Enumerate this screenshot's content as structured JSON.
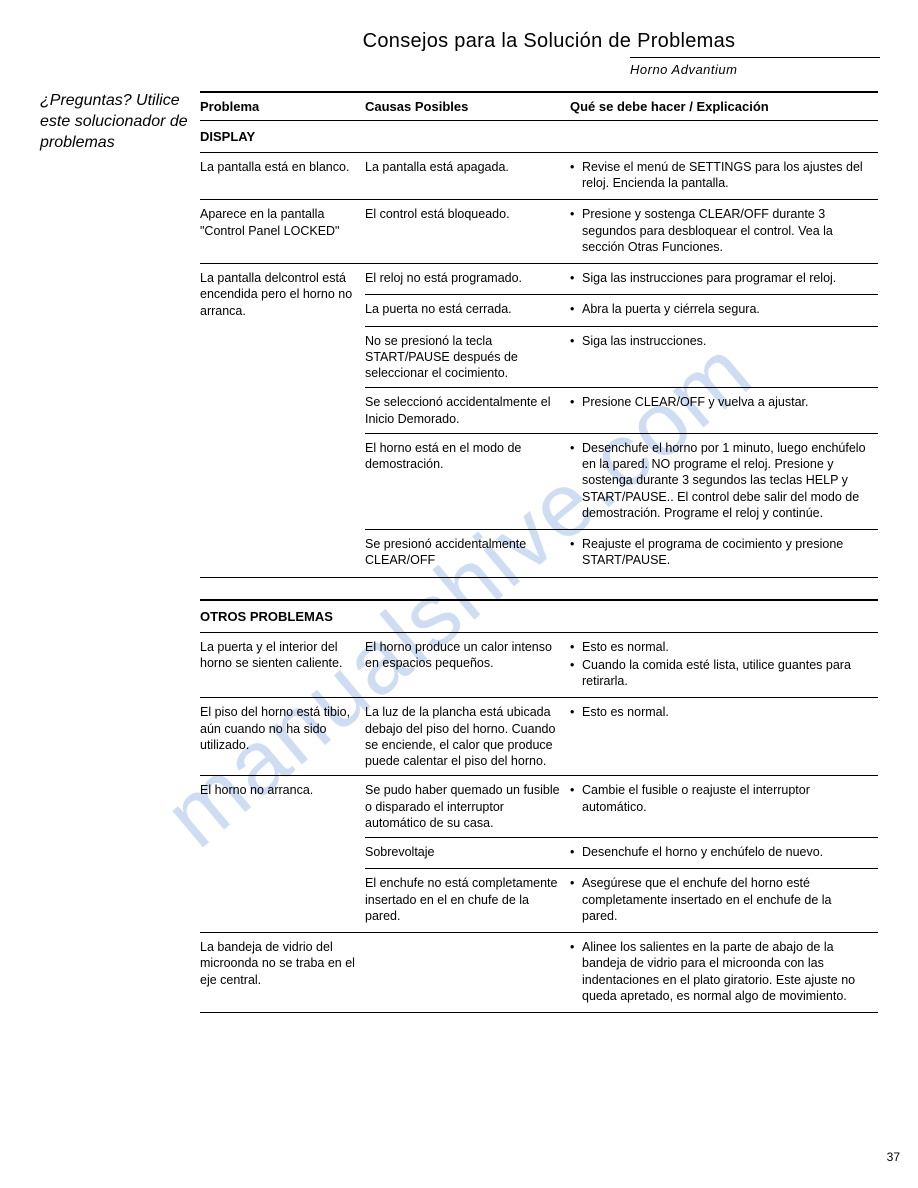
{
  "title": "Consejos para la Solución de Problemas",
  "subtitle": "Horno Advantium",
  "sidebar": "¿Preguntas? Utilice este solucionador de problemas",
  "page_number": "37",
  "watermark": "manualshive.com",
  "headers": {
    "problem": "Problema",
    "cause": "Causas Posibles",
    "solution": "Qué se debe hacer / Explicación"
  },
  "sections": [
    {
      "name": "DISPLAY",
      "rows": [
        {
          "problem": "La pantalla está en blanco.",
          "cause": "La pantalla está apagada.",
          "bullets": [
            "Revise el menú de SETTINGS para los ajustes del reloj.   Encienda la pantalla."
          ]
        },
        {
          "problem": "Aparece en la pantalla \"Control Panel LOCKED\"",
          "cause": "El control está bloqueado.",
          "bullets": [
            "Presione y sostenga CLEAR/OFF durante 3 segundos para desbloquear el control.  Vea la sección Otras Funciones."
          ]
        },
        {
          "problem": "La pantalla delcontrol está encendida pero el horno no arranca.",
          "cause": "El reloj no está programado.",
          "bullets": [
            "Siga las instrucciones para programar el reloj."
          ],
          "rowspan": 6
        },
        {
          "cause": "La puerta no está cerrada.",
          "bullets": [
            "Abra la puerta y ciérrela segura."
          ]
        },
        {
          "cause": "No se presionó la tecla START/PAUSE después de seleccionar el cocimiento.",
          "bullets": [
            "Siga las instrucciones."
          ]
        },
        {
          "cause": "Se seleccionó accidentalmente el Inicio Demorado.",
          "bullets": [
            "Presione CLEAR/OFF y vuelva a ajustar."
          ]
        },
        {
          "cause": "El horno está en el modo de demostración.",
          "bullets": [
            "Desenchufe el horno por 1 minuto, luego enchúfelo en la pared. NO programe el reloj.  Presione y sostenga durante 3 segundos las teclas HELP y START/PAUSE..  El control debe salir del modo de demostración.  Programe el reloj y continúe."
          ]
        },
        {
          "cause": "Se presionó accidentalmente CLEAR/OFF",
          "bullets": [
            "Reajuste el programa de cocimiento y presione START/PAUSE."
          ]
        }
      ]
    },
    {
      "name": "OTROS PROBLEMAS",
      "rows": [
        {
          "problem": "La puerta y el interior del horno se sienten caliente.",
          "cause": "El horno produce un calor intenso en espacios pequeños.",
          "bullets": [
            "Esto es normal.",
            "Cuando la comida esté lista, utilice guantes para retirarla."
          ]
        },
        {
          "problem": "El piso del horno está tibio, aún cuando no ha sido utilizado.",
          "cause": "La luz de la plancha está ubicada debajo del piso del horno.  Cuando se enciende, el calor que produce puede calentar el piso del horno.",
          "bullets": [
            "Esto es normal."
          ]
        },
        {
          "problem": "El horno no arranca.",
          "cause": "Se pudo haber quemado un fusible o disparado el interruptor automático de su casa.",
          "bullets": [
            "Cambie el fusible o reajuste el interruptor automático."
          ],
          "rowspan": 3
        },
        {
          "cause": "Sobrevoltaje",
          "bullets": [
            "Desenchufe el horno y enchúfelo de nuevo."
          ]
        },
        {
          "cause": "El enchufe no está completamente insertado en el en chufe de la pared.",
          "bullets": [
            "Asegúrese que el enchufe del horno esté completamente insertado en el enchufe de la pared."
          ]
        },
        {
          "problem": "La bandeja de vidrio del microonda no se traba en el eje central.",
          "cause": "",
          "bullets": [
            "Alinee los salientes en la parte de abajo de la bandeja de vidrio para el microonda con las indentaciones en el plato giratorio.  Este ajuste no queda apretado, es normal algo de movimiento."
          ]
        }
      ]
    }
  ]
}
